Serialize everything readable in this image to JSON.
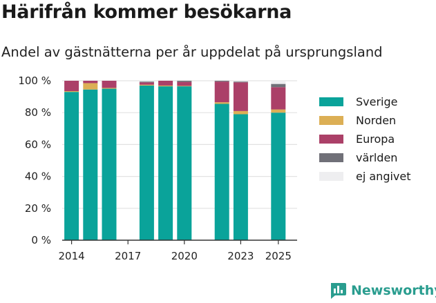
{
  "header": {
    "title": "Härifrån kommer besökarna",
    "subtitle": "Andel av gästnätterna per år uppdelat på ursprungsland"
  },
  "brand": {
    "name": "Newsworthy",
    "icon": "bar-chart-icon"
  },
  "colors": {
    "Sverige": "#0aa39a",
    "Norden": "#dcaf55",
    "Europa": "#ab4068",
    "världen": "#707078",
    "ej angivet": "#eeeef0",
    "grid": "#e2e2e2",
    "axis": "#333333",
    "brand": "#2a9d8f"
  },
  "chart_data": {
    "type": "bar",
    "stacked": true,
    "title": "Härifrån kommer besökarna",
    "subtitle": "Andel av gästnätterna per år uppdelat på ursprungsland",
    "x": [
      2014,
      2015,
      2016,
      2018,
      2019,
      2020,
      2022,
      2023,
      2025
    ],
    "x_ticks": [
      2014,
      2017,
      2020,
      2023,
      2025
    ],
    "y_ticks": [
      0,
      20,
      40,
      60,
      80,
      100
    ],
    "y_tick_labels": [
      "0 %",
      "20 %",
      "40 %",
      "60 %",
      "80 %",
      "100 %"
    ],
    "ylim": [
      0,
      100
    ],
    "xlim": [
      2013.5,
      2026
    ],
    "grid": true,
    "legend": "right",
    "series": [
      {
        "name": "Sverige",
        "values": [
          93,
          94.5,
          95,
          97,
          96.5,
          96.5,
          85.5,
          79,
          80
        ]
      },
      {
        "name": "Norden",
        "values": [
          0.5,
          4,
          0.5,
          0.5,
          0.5,
          0.3,
          1,
          2,
          2
        ]
      },
      {
        "name": "Europa",
        "values": [
          6.5,
          1.5,
          4.5,
          1.5,
          3,
          2.5,
          13,
          18,
          14
        ]
      },
      {
        "name": "världen",
        "values": [
          0,
          0,
          0,
          0.5,
          0,
          0.7,
          0.5,
          0.5,
          2
        ]
      },
      {
        "name": "ej angivet",
        "values": [
          0,
          0,
          0,
          0.5,
          0,
          0,
          0,
          0.5,
          2
        ]
      }
    ]
  }
}
